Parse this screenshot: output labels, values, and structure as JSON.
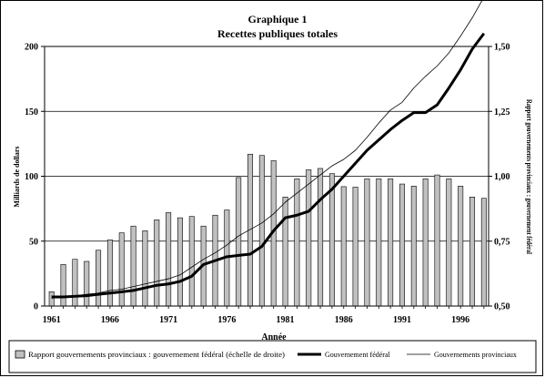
{
  "chart_data": {
    "type": "bar+line",
    "title": "Graphique 1",
    "subtitle": "Recettes publiques totales",
    "xlabel": "Année",
    "ylabel_left": "Milliards de dollars",
    "ylabel_right": "Rapport gouvernements provinciaux : gouvernement fédéral",
    "x": [
      1961,
      1962,
      1963,
      1964,
      1965,
      1966,
      1967,
      1968,
      1969,
      1970,
      1971,
      1972,
      1973,
      1974,
      1975,
      1976,
      1977,
      1978,
      1979,
      1980,
      1981,
      1982,
      1983,
      1984,
      1985,
      1986,
      1987,
      1988,
      1989,
      1990,
      1991,
      1992,
      1993,
      1994,
      1995,
      1996,
      1997,
      1998
    ],
    "x_ticks": [
      "1961",
      "1966",
      "1971",
      "1976",
      "1981",
      "1986",
      "1991",
      "1996"
    ],
    "y_left_ticks": [
      "0",
      "50",
      "100",
      "150",
      "200"
    ],
    "y_left_range": [
      0,
      200
    ],
    "y_right_ticks": [
      "0,50",
      "0,75",
      "1,00",
      "1,25",
      "1,50"
    ],
    "y_right_range": [
      0.5,
      1.5
    ],
    "grid": "horizontal",
    "legend_position": "bottom",
    "series": [
      {
        "name": "Rapport gouvernements provinciaux : gouvernement fédéral (échelle de droite)",
        "kind": "bar",
        "axis": "right",
        "color": "#c0c0c0",
        "values": [
          0.555,
          0.66,
          0.68,
          0.672,
          0.715,
          0.755,
          0.782,
          0.808,
          0.79,
          0.832,
          0.86,
          0.84,
          0.845,
          0.808,
          0.85,
          0.87,
          0.995,
          1.085,
          1.08,
          1.06,
          0.92,
          0.99,
          1.025,
          1.03,
          1.01,
          0.96,
          0.958,
          0.99,
          0.99,
          0.99,
          0.97,
          0.962,
          0.99,
          1.005,
          0.99,
          0.962,
          0.92,
          0.915
        ]
      },
      {
        "name": "Gouvernement fédéral",
        "kind": "line",
        "axis": "left",
        "color": "#000000",
        "values": [
          7,
          7,
          7.5,
          8,
          9,
          10,
          11,
          12,
          14,
          16,
          17,
          19,
          23,
          32,
          35,
          38,
          39,
          40,
          46,
          58,
          68,
          70,
          73,
          82,
          90,
          100,
          110,
          120,
          128,
          136,
          143,
          149,
          149,
          155,
          168,
          182,
          198,
          210
        ]
      },
      {
        "name": "Gouvernements provinciaux",
        "kind": "line",
        "axis": "left",
        "color": "#000000",
        "values": [
          6,
          7,
          8,
          9,
          10,
          12,
          13,
          15,
          17,
          19,
          21,
          24,
          30,
          36,
          41,
          47,
          54,
          59,
          64,
          71,
          80,
          87,
          94,
          101,
          108,
          113,
          120,
          130,
          141,
          151,
          157,
          168,
          177,
          185,
          195,
          208,
          222,
          238
        ]
      }
    ]
  }
}
